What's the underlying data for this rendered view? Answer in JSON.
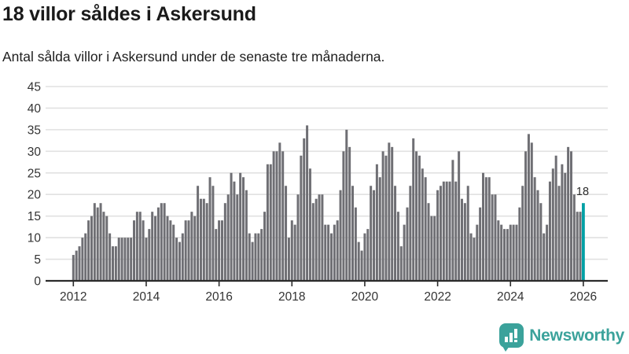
{
  "header": {
    "title": "18 villor såldes i Askersund",
    "subtitle": "Antal sålda villor i Askersund under de senaste tre månaderna."
  },
  "annotation": {
    "latest_value_label": "18"
  },
  "logo": {
    "text": "Newsworthy",
    "icon": "bar-chart-bubble-icon"
  },
  "colors": {
    "bar": "#6F6F74",
    "highlight_bar": "#00A0A5",
    "grid": "#e1e1e1",
    "axis": "#2b2b2b",
    "tick_text": "#333333",
    "title_text": "#1a1a1a",
    "logo_teal": "#3BA29B"
  },
  "chart_data": {
    "type": "bar",
    "title": "18 villor såldes i Askersund",
    "subtitle": "Antal sålda villor i Askersund under de senaste tre månaderna.",
    "x_unit": "month",
    "x_start": "2012-01",
    "x_tick_labels": [
      "2012",
      "2014",
      "2016",
      "2018",
      "2020",
      "2022",
      "2024",
      "2026"
    ],
    "y_ticks": [
      0,
      5,
      10,
      15,
      20,
      25,
      30,
      35,
      40,
      45
    ],
    "ylim": [
      0,
      45
    ],
    "grid": "horizontal",
    "legend": "none",
    "highlight_last": true,
    "highlight_value": 18,
    "values": [
      6,
      7,
      8,
      10,
      11,
      14,
      15,
      18,
      17,
      18,
      16,
      15,
      11,
      8,
      8,
      10,
      10,
      10,
      10,
      10,
      14,
      16,
      16,
      14,
      10,
      12,
      16,
      15,
      17,
      18,
      18,
      15,
      14,
      13,
      10,
      9,
      11,
      14,
      14,
      16,
      15,
      22,
      19,
      19,
      18,
      24,
      22,
      12,
      14,
      14,
      18,
      20,
      25,
      23,
      20,
      25,
      24,
      21,
      11,
      9,
      11,
      11,
      12,
      16,
      27,
      27,
      30,
      30,
      32,
      30,
      22,
      10,
      14,
      13,
      20,
      29,
      33,
      36,
      26,
      18,
      19,
      20,
      20,
      13,
      13,
      11,
      13,
      14,
      21,
      30,
      35,
      31,
      22,
      17,
      9,
      7,
      11,
      12,
      22,
      21,
      27,
      24,
      30,
      29,
      32,
      31,
      22,
      16,
      8,
      13,
      17,
      22,
      33,
      30,
      29,
      26,
      24,
      18,
      15,
      15,
      21,
      22,
      23,
      23,
      23,
      28,
      23,
      30,
      19,
      18,
      22,
      11,
      10,
      13,
      17,
      25,
      24,
      24,
      20,
      20,
      14,
      13,
      12,
      12,
      13,
      13,
      13,
      17,
      22,
      30,
      34,
      32,
      24,
      21,
      18,
      11,
      13,
      23,
      26,
      29,
      22,
      27,
      25,
      31,
      30,
      20,
      16,
      16,
      18
    ]
  }
}
